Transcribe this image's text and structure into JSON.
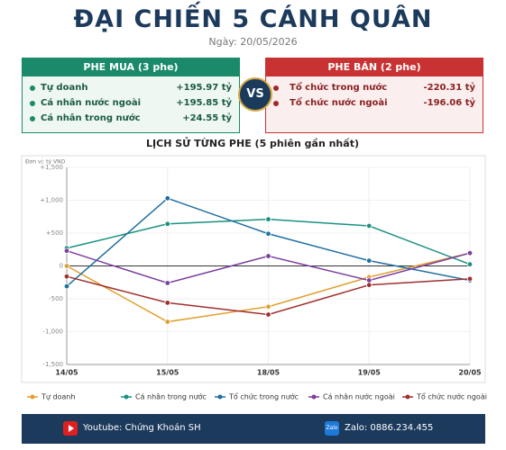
{
  "header": {
    "title": "ĐẠI CHIẾN 5 CÁNH QUÂN",
    "date": "Ngày: 20/05/2026"
  },
  "buy": {
    "title": "PHE MUA  (3 phe)",
    "items": [
      {
        "name": "Tự doanh",
        "value": "+195.97 tỷ"
      },
      {
        "name": "Cá nhân nước ngoài",
        "value": "+195.85 tỷ"
      },
      {
        "name": "Cá nhân trong nước",
        "value": "+24.55 tỷ"
      }
    ]
  },
  "vs": "VS",
  "sell": {
    "title": "PHE BÁN  (2 phe)",
    "items": [
      {
        "name": "Tổ chức trong nước",
        "value": "-220.31 tỷ"
      },
      {
        "name": "Tổ chức nước ngoài",
        "value": "-196.06 tỷ"
      }
    ]
  },
  "chart_data": {
    "type": "line",
    "title": "LỊCH SỬ TỪNG PHE (5 phiên gần nhất)",
    "unit": "Đơn vị: tỷ VND",
    "categories": [
      "14/05",
      "15/05",
      "18/05",
      "19/05",
      "20/05"
    ],
    "series": [
      {
        "name": "Tự doanh",
        "color": "#e0a030",
        "values": [
          0,
          -850,
          -620,
          -170,
          195.97
        ]
      },
      {
        "name": "Cá nhân trong nước",
        "color": "#1a9080",
        "values": [
          270,
          640,
          710,
          610,
          24.55
        ]
      },
      {
        "name": "Tổ chức trong nước",
        "color": "#1f6f9f",
        "values": [
          -310,
          1030,
          490,
          80,
          -220.31
        ]
      },
      {
        "name": "Cá nhân nước ngoài",
        "color": "#7b3fa0",
        "values": [
          230,
          -260,
          150,
          -220,
          195.85
        ]
      },
      {
        "name": "Tổ chức nước ngoài",
        "color": "#a03030",
        "values": [
          -160,
          -560,
          -740,
          -290,
          -196.06
        ]
      }
    ],
    "ylim": [
      -1500,
      1500
    ],
    "yticks": [
      {
        "value": -1500,
        "label": "-1,500"
      },
      {
        "value": -1000,
        "label": "-1,000"
      },
      -500,
      0,
      {
        "value": 500,
        "label": "+500"
      },
      {
        "value": 1000,
        "label": "+1,000"
      },
      {
        "value": 1500,
        "label": "+1,500"
      }
    ],
    "grid": true
  },
  "footer": {
    "youtube": "Youtube: Chứng Khoán SH",
    "zalo_icon": "Zalo",
    "zalo": "Zalo: 0886.234.455"
  }
}
